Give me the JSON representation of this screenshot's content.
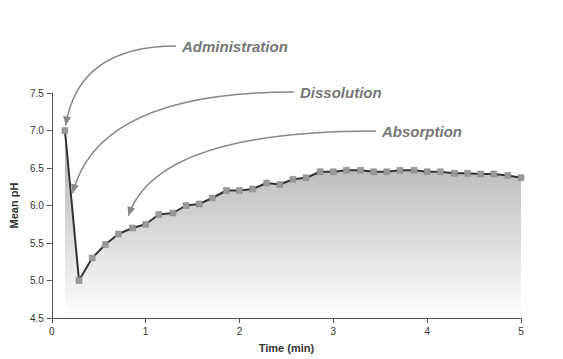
{
  "chart_data": {
    "type": "line",
    "x_label": "Time (min)",
    "y_label": "Mean pH",
    "x": [
      0.14,
      0.29,
      0.43,
      0.57,
      0.71,
      0.86,
      1.0,
      1.14,
      1.29,
      1.43,
      1.57,
      1.71,
      1.86,
      2.0,
      2.14,
      2.29,
      2.43,
      2.57,
      2.71,
      2.86,
      3.0,
      3.14,
      3.29,
      3.43,
      3.57,
      3.71,
      3.86,
      4.0,
      4.14,
      4.29,
      4.43,
      4.57,
      4.71,
      4.86,
      5.0
    ],
    "values": [
      7.0,
      5.0,
      5.3,
      5.48,
      5.62,
      5.7,
      5.75,
      5.88,
      5.9,
      6.0,
      6.02,
      6.1,
      6.2,
      6.2,
      6.22,
      6.3,
      6.28,
      6.35,
      6.37,
      6.45,
      6.45,
      6.47,
      6.47,
      6.45,
      6.45,
      6.47,
      6.47,
      6.45,
      6.45,
      6.43,
      6.43,
      6.42,
      6.42,
      6.4,
      6.37
    ],
    "color": "#333333",
    "marker": "square",
    "line_style": "solid",
    "grid": false,
    "xlim": [
      0,
      5
    ],
    "xticks": [
      0,
      1,
      2,
      3,
      4,
      5
    ],
    "ylim": [
      4.5,
      7.5
    ],
    "yticks": [
      4.5,
      {
        "value": 5,
        "label": "5.0"
      },
      5.5,
      {
        "value": 6,
        "label": "6.0"
      },
      6.5,
      {
        "value": 7,
        "label": "7.0"
      },
      7.5
    ],
    "annotations": [
      {
        "text": "Administration",
        "x": 0.14,
        "y": 7.0
      },
      {
        "text": "Dissolution",
        "x": 0.21,
        "y": 6.1
      },
      {
        "text": "Absorption",
        "x": 0.8,
        "y": 5.8
      }
    ]
  }
}
